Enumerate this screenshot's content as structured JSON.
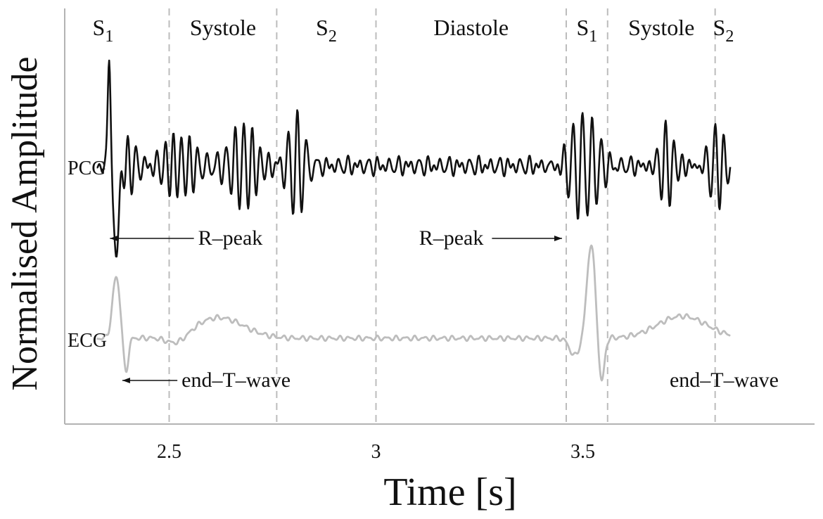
{
  "chart_data": {
    "type": "line",
    "title": "",
    "xlabel": "Time [s]",
    "ylabel": "Normalised Amplitude",
    "xlim": [
      2.0,
      3.85
    ],
    "xticks": [
      {
        "value": 2.5,
        "label": "2.5"
      },
      {
        "value": 3.0,
        "label": "3"
      },
      {
        "value": 3.5,
        "label": "3.5"
      }
    ],
    "grid": false,
    "phase_boundaries": [
      2.5,
      2.76,
      3.0,
      3.46,
      3.56,
      3.82
    ],
    "phases": [
      {
        "base": "S",
        "sub": "1",
        "center": 2.34
      },
      {
        "base": "Systole",
        "sub": "",
        "center": 2.63
      },
      {
        "base": "S",
        "sub": "2",
        "center": 2.88
      },
      {
        "base": "Diastole",
        "sub": "",
        "center": 3.23
      },
      {
        "base": "S",
        "sub": "1",
        "center": 3.51
      },
      {
        "base": "Systole",
        "sub": "",
        "center": 3.69
      },
      {
        "base": "S",
        "sub": "2",
        "center": 3.84
      }
    ],
    "series": [
      {
        "name": "PCG",
        "color": "#111111"
      },
      {
        "name": "ECG",
        "color": "#bdbdbd"
      }
    ],
    "annotations": [
      {
        "text": "R–peak",
        "series": "PCG",
        "x": 2.57,
        "arrow_to": 2.35,
        "side": "right"
      },
      {
        "text": "R–peak",
        "series": "PCG",
        "x": 3.26,
        "arrow_to": 3.46,
        "side": "left"
      },
      {
        "text": "end–T–wave",
        "series": "ECG",
        "x": 2.53,
        "arrow_to": 2.38,
        "side": "right"
      },
      {
        "text": "end–T–wave",
        "series": "ECG",
        "x": 3.71,
        "arrow_to": null,
        "side": "right"
      }
    ]
  }
}
